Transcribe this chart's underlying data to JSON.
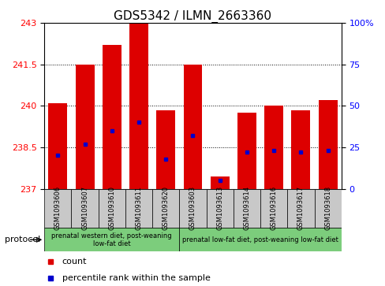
{
  "title": "GDS5342 / ILMN_2663360",
  "categories": [
    "GSM1093606",
    "GSM1093607",
    "GSM1093610",
    "GSM1093611",
    "GSM1093620",
    "GSM1093603",
    "GSM1093613",
    "GSM1093614",
    "GSM1093616",
    "GSM1093617",
    "GSM1093618"
  ],
  "bar_values": [
    240.1,
    241.5,
    242.2,
    243.0,
    239.85,
    241.5,
    237.45,
    239.75,
    240.0,
    239.85,
    240.2
  ],
  "percentile_values": [
    20,
    27,
    35,
    40,
    18,
    32,
    5,
    22,
    23,
    22,
    23
  ],
  "ylim_left": [
    237,
    243
  ],
  "ylim_right": [
    0,
    100
  ],
  "yticks_left": [
    237,
    238.5,
    240,
    241.5,
    243
  ],
  "ytick_labels_left": [
    "237",
    "238.5",
    "240",
    "241.5",
    "243"
  ],
  "yticks_right": [
    0,
    25,
    50,
    75,
    100
  ],
  "ytick_labels_right": [
    "0",
    "25",
    "50",
    "75",
    "100%"
  ],
  "bar_color": "#dd0000",
  "dot_color": "#0000cc",
  "bar_width": 0.7,
  "background_color": "#ffffff",
  "plot_bg_color": "#ffffff",
  "group1_indices": [
    0,
    1,
    2,
    3,
    4
  ],
  "group2_indices": [
    5,
    6,
    7,
    8,
    9,
    10
  ],
  "group1_label": "prenatal western diet, post-weaning\nlow-fat diet",
  "group2_label": "prenatal low-fat diet, post-weaning low-fat diet",
  "group_bg_color": "#7ccd7c",
  "tick_label_bg": "#c8c8c8",
  "protocol_label": "protocol",
  "legend_count_label": "count",
  "legend_pct_label": "percentile rank within the sample",
  "title_fontsize": 11,
  "tick_fontsize": 8,
  "cat_fontsize": 6,
  "proto_fontsize": 8,
  "legend_fontsize": 8
}
